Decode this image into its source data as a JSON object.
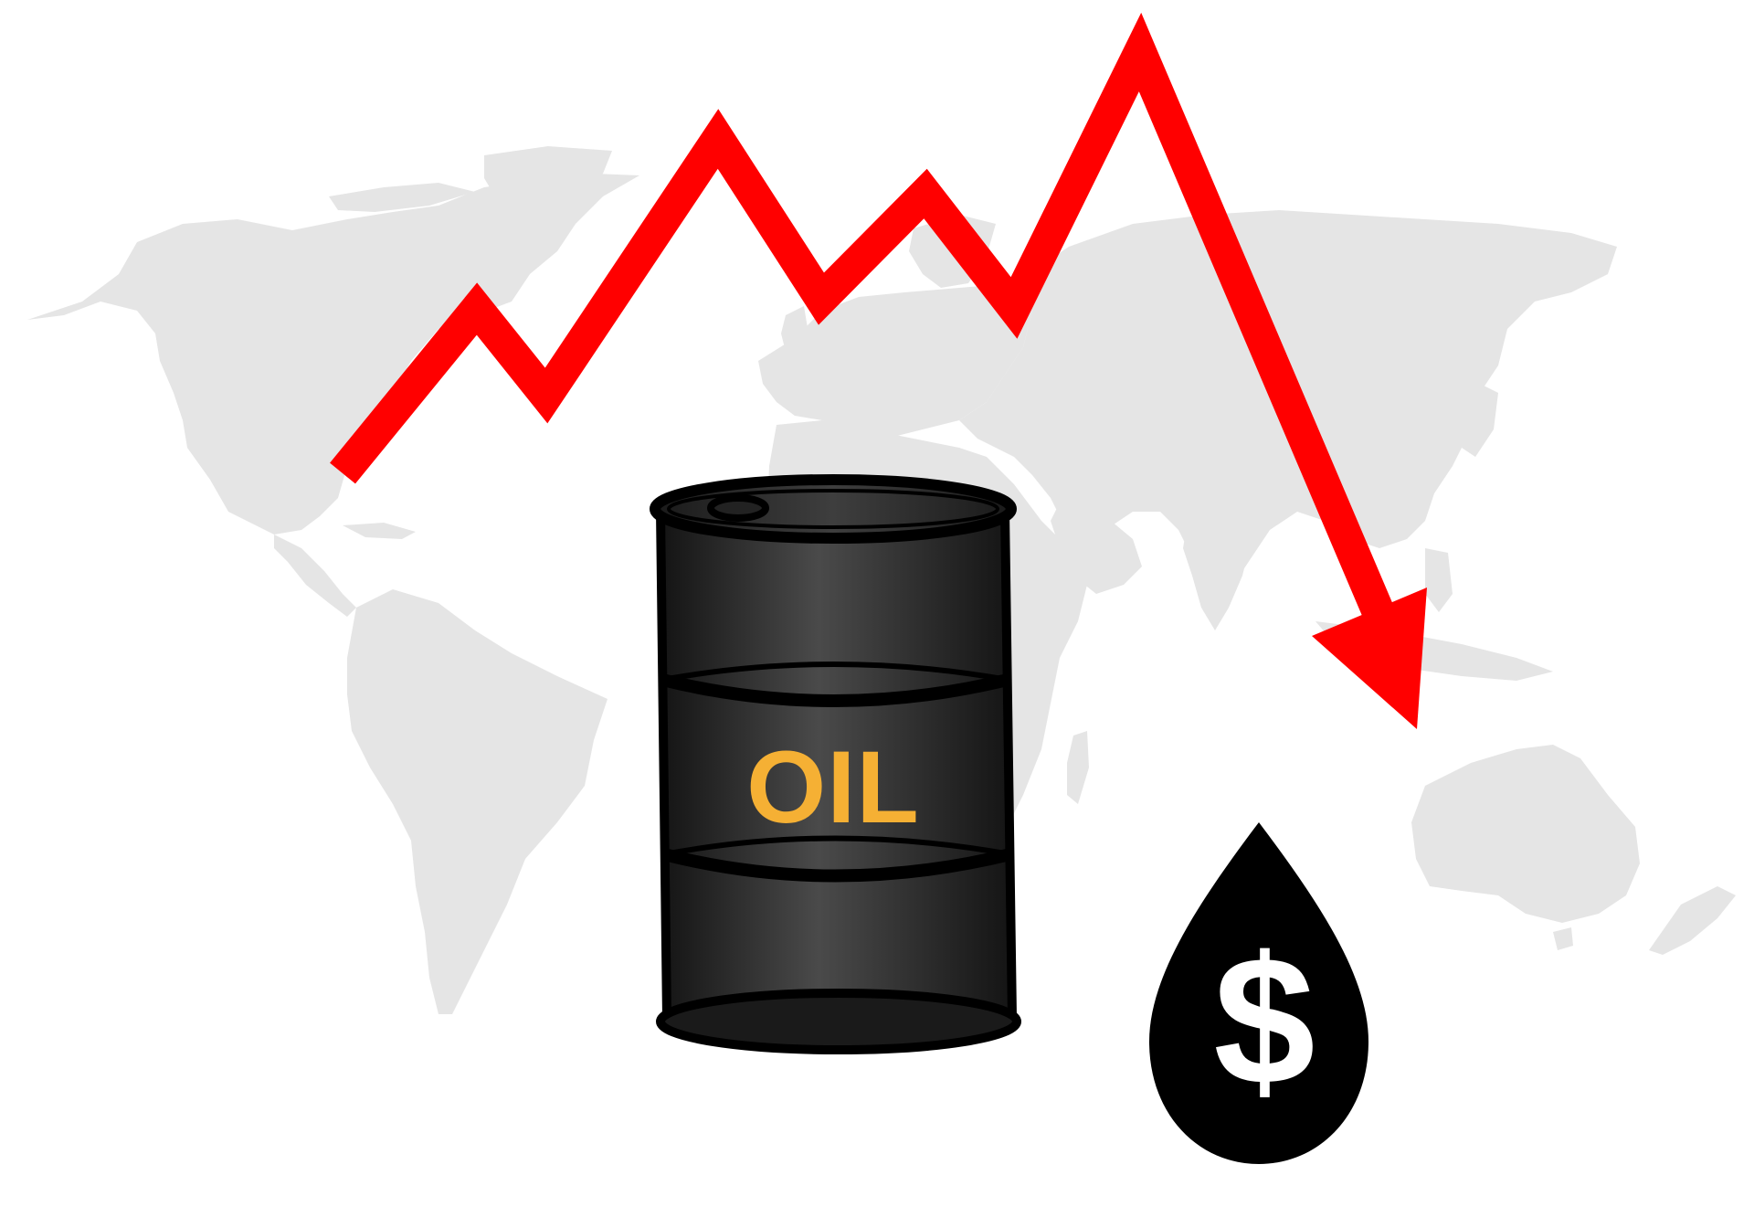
{
  "illustration": {
    "barrel": {
      "label": "OIL",
      "label_color": "#f5b034",
      "body_color": "#1e1e1e",
      "highlight_color": "#4a4a4a"
    },
    "drop": {
      "symbol": "$",
      "fill_color": "#000000",
      "symbol_color": "#ffffff"
    },
    "trend_arrow": {
      "color": "#ff0000",
      "direction": "down"
    },
    "world_map": {
      "color": "#e5e5e5"
    }
  }
}
